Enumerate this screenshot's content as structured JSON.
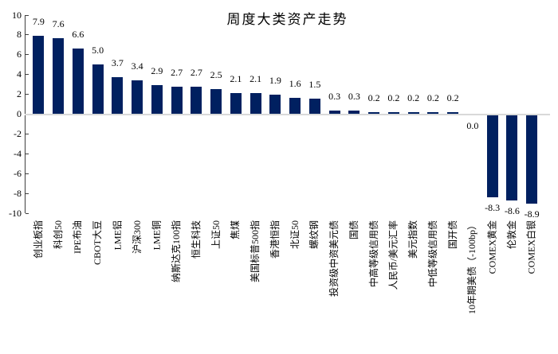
{
  "chart_data": {
    "type": "bar",
    "title": "周度大类资产走势",
    "categories": [
      "创业板指",
      "科创50",
      "IPE布油",
      "CBOT大豆",
      "LME铝",
      "沪深300",
      "LME铜",
      "纳斯达克100指",
      "恒生科技",
      "上证50",
      "焦煤",
      "美国标普500指",
      "香港恒指",
      "北证50",
      "螺纹钢",
      "投资级中资美元债",
      "国债",
      "中高等级信用债",
      "人民币/美元汇率",
      "美元指数",
      "中低等级信用债",
      "国开债",
      "10年期美债（-100bp）",
      "COMEX黄金",
      "伦敦金",
      "COMEX白银"
    ],
    "values": [
      7.9,
      7.6,
      6.6,
      5.0,
      3.7,
      3.4,
      2.9,
      2.7,
      2.7,
      2.5,
      2.1,
      2.1,
      1.9,
      1.6,
      1.5,
      0.3,
      0.3,
      0.2,
      0.2,
      0.2,
      0.2,
      0.2,
      0.0,
      -8.3,
      -8.6,
      -8.9
    ],
    "value_labels": [
      "7.9",
      "7.6",
      "6.6",
      "5.0",
      "3.7",
      "3.4",
      "2.9",
      "2.7",
      "2.7",
      "2.5",
      "2.1",
      "2.1",
      "1.9",
      "1.6",
      "1.5",
      "0.3",
      "0.3",
      "0.2",
      "0.2",
      "0.2",
      "0.2",
      "0.2",
      "0.0",
      "-8.3",
      "-8.6",
      "-8.9"
    ],
    "xlabel": "",
    "ylabel": "",
    "ylim": [
      -10,
      10
    ],
    "yticks": [
      10,
      8,
      6,
      4,
      2,
      0,
      -2,
      -4,
      -6,
      -8,
      -10
    ],
    "grid": false,
    "legend": false,
    "colors": {
      "bar": "#002060",
      "axis": "#404040",
      "zero_line": "#d9d9d9",
      "text": "#000000"
    }
  }
}
